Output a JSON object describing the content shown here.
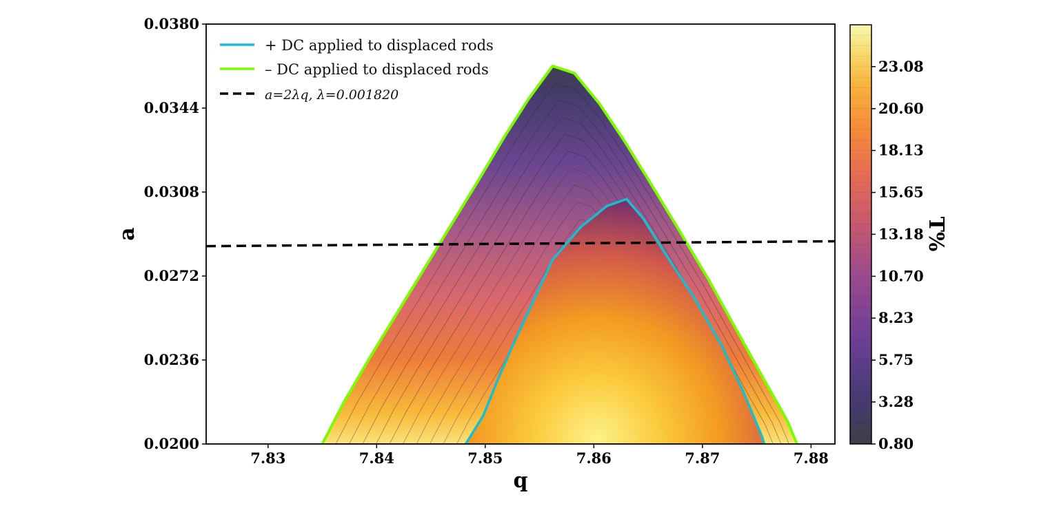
{
  "chart_data": {
    "type": "heatmap",
    "title": "",
    "xlabel": "q",
    "ylabel": "a",
    "xlim": [
      7.8243,
      7.8822
    ],
    "ylim": [
      0.02,
      0.038
    ],
    "xticks": [
      7.83,
      7.84,
      7.85,
      7.86,
      7.87,
      7.88
    ],
    "xtick_labels": [
      "7.83",
      "7.84",
      "7.85",
      "7.86",
      "7.87",
      "7.88"
    ],
    "yticks": [
      0.02,
      0.0236,
      0.0272,
      0.0308,
      0.0344,
      0.038
    ],
    "ytick_labels": [
      "0.0200",
      "0.0236",
      "0.0272",
      "0.0308",
      "0.0344",
      "0.0380"
    ],
    "colorbar": {
      "label": "T%",
      "range": [
        0.8,
        25.55
      ],
      "ticks": [
        0.8,
        3.28,
        5.75,
        8.23,
        10.7,
        13.18,
        15.65,
        18.13,
        20.6,
        23.08
      ],
      "tick_labels": [
        "0.80",
        "3.28",
        "5.75",
        "8.23",
        "10.70",
        "13.18",
        "15.65",
        "18.13",
        "20.60",
        "23.08"
      ]
    },
    "series": [
      {
        "name": "+ DC applied to displaced rods",
        "color": "#17becf",
        "style": "solid",
        "points": [
          [
            7.8482,
            0.02
          ],
          [
            7.8498,
            0.0212
          ],
          [
            7.8512,
            0.0228
          ],
          [
            7.8528,
            0.0245
          ],
          [
            7.8545,
            0.0262
          ],
          [
            7.8562,
            0.0279
          ],
          [
            7.8588,
            0.0293
          ],
          [
            7.8612,
            0.0302
          ],
          [
            7.863,
            0.0305
          ],
          [
            7.8645,
            0.0297
          ],
          [
            7.8668,
            0.028
          ],
          [
            7.8692,
            0.0263
          ],
          [
            7.8718,
            0.0242
          ],
          [
            7.8738,
            0.0222
          ],
          [
            7.8755,
            0.0203
          ],
          [
            7.8757,
            0.02
          ]
        ]
      },
      {
        "name": "– DC applied to displaced rods",
        "color": "#7cfc00",
        "style": "solid",
        "points": [
          [
            7.835,
            0.02
          ],
          [
            7.837,
            0.0218
          ],
          [
            7.8395,
            0.0238
          ],
          [
            7.842,
            0.0257
          ],
          [
            7.8445,
            0.0276
          ],
          [
            7.847,
            0.0295
          ],
          [
            7.8495,
            0.0314
          ],
          [
            7.8518,
            0.0332
          ],
          [
            7.854,
            0.0348
          ],
          [
            7.8562,
            0.0362
          ],
          [
            7.8582,
            0.0359
          ],
          [
            7.8605,
            0.0346
          ],
          [
            7.8628,
            0.033
          ],
          [
            7.8652,
            0.0312
          ],
          [
            7.8678,
            0.0292
          ],
          [
            7.8705,
            0.0271
          ],
          [
            7.873,
            0.025
          ],
          [
            7.8755,
            0.0229
          ],
          [
            7.8778,
            0.021
          ],
          [
            7.8787,
            0.02
          ]
        ]
      },
      {
        "name": "a=2λq, λ=0.001820",
        "color": "#000000",
        "style": "dashed",
        "points": [
          [
            7.8243,
            0.02848
          ],
          [
            7.8822,
            0.02869
          ]
        ]
      }
    ],
    "legend": {
      "location": "upper-left",
      "entries": [
        {
          "label": "+ DC applied to displaced rods",
          "color": "#17becf",
          "style": "solid"
        },
        {
          "label": "– DC applied to displaced rods",
          "color": "#7cfc00",
          "style": "solid"
        },
        {
          "label": "a=2λq, λ=0.001820",
          "color": "#000000",
          "style": "dashed"
        }
      ]
    }
  }
}
